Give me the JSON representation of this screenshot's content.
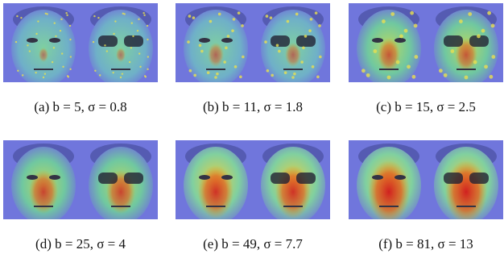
{
  "panels": [
    {
      "caption": "(a) b = 5, σ = 0.8"
    },
    {
      "caption": "(b) b = 11, σ = 1.8"
    },
    {
      "caption": "(c) b = 15, σ = 2.5"
    },
    {
      "caption": "(d) b = 25, σ = 4"
    },
    {
      "caption": "(e) b = 49, σ = 7.7"
    },
    {
      "caption": "(f) b = 81, σ = 13"
    }
  ]
}
